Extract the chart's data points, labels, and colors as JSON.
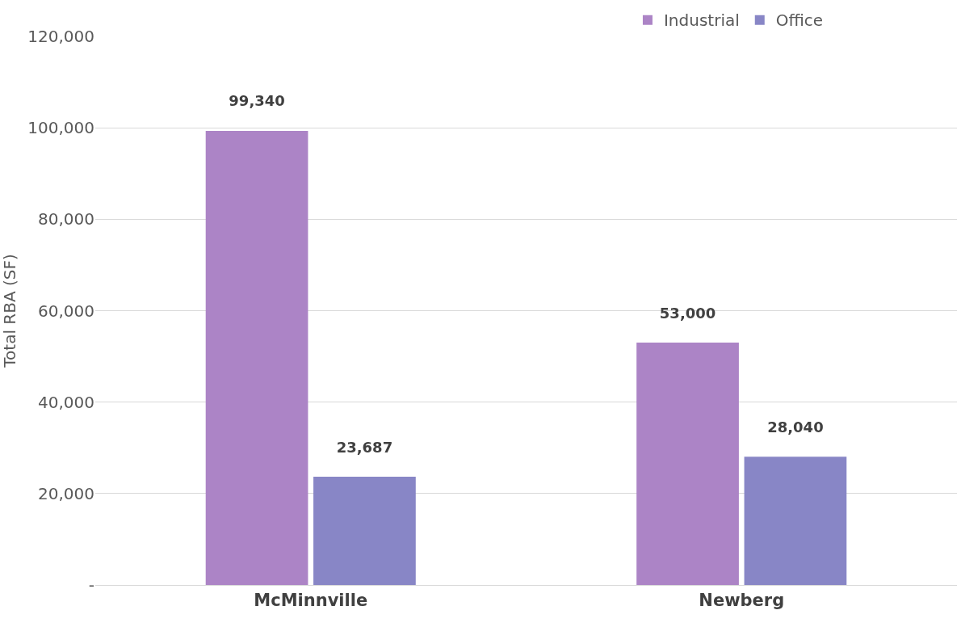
{
  "chart_data": {
    "type": "bar",
    "ylabel": "Total RBA (SF)",
    "categories": [
      "McMinnville",
      "Newberg"
    ],
    "series": [
      {
        "name": "Industrial",
        "color": "#ac84c6",
        "values": [
          99340,
          53000
        ],
        "value_labels": [
          "99,340",
          "53,000"
        ]
      },
      {
        "name": "Office",
        "color": "#8886c6",
        "values": [
          23687,
          28040
        ],
        "value_labels": [
          "23,687",
          "28,040"
        ]
      }
    ],
    "ylim": [
      0,
      120000
    ],
    "yticks": [
      {
        "value": 0,
        "label": "-"
      },
      {
        "value": 20000,
        "label": "20,000"
      },
      {
        "value": 40000,
        "label": "40,000"
      },
      {
        "value": 60000,
        "label": "60,000"
      },
      {
        "value": 80000,
        "label": "80,000"
      },
      {
        "value": 100000,
        "label": "100,000"
      },
      {
        "value": 120000,
        "label": "120,000"
      }
    ],
    "grid": "y",
    "legend": "top right"
  }
}
